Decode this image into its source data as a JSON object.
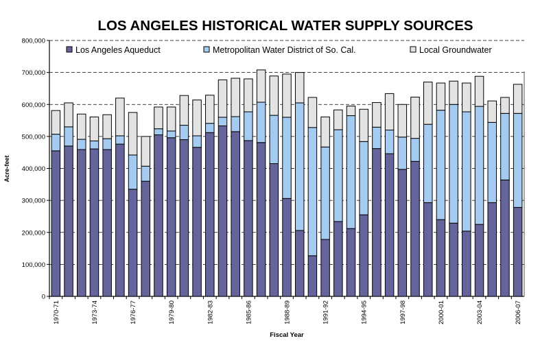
{
  "chart_data": {
    "type": "bar",
    "stacked": true,
    "title": "LOS ANGELES HISTORICAL WATER SUPPLY SOURCES",
    "xlabel": "Fiscal Year",
    "ylabel": "Acre-feet",
    "ylim": [
      0,
      800000
    ],
    "yticks": [
      "0",
      "100,000",
      "200,000",
      "300,000",
      "400,000",
      "500,000",
      "600,000",
      "700,000",
      "800,000"
    ],
    "grid": true,
    "legend": "top",
    "categories": [
      "1970-71",
      "1971-72",
      "1972-73",
      "1973-74",
      "1974-75",
      "1975-76",
      "1976-77",
      "1977-78",
      "1978-79",
      "1979-80",
      "1980-81",
      "1981-82",
      "1982-83",
      "1983-84",
      "1984-85",
      "1985-86",
      "1986-87",
      "1987-88",
      "1988-89",
      "1989-90",
      "1990-91",
      "1991-92",
      "1992-93",
      "1993-94",
      "1994-95",
      "1995-96",
      "1996-97",
      "1997-98",
      "1998-99",
      "1999-00",
      "2000-01",
      "2001-02",
      "2002-03",
      "2003-04",
      "2004-05",
      "2005-06",
      "2006-07"
    ],
    "xtick_labels": [
      "1970-71",
      "1973-74",
      "1976-77",
      "1979-80",
      "1982-83",
      "1985-86",
      "1988-89",
      "1991-92",
      "1994-95",
      "1997-98",
      "2000-01",
      "2003-04",
      "2006-07"
    ],
    "series": [
      {
        "name": "Los Angeles Aqueduct",
        "color": "#65659c",
        "values": [
          455000,
          470000,
          459000,
          461000,
          459000,
          476000,
          335000,
          360000,
          505000,
          496000,
          490000,
          466000,
          512000,
          533000,
          515000,
          487000,
          481000,
          415000,
          306000,
          206000,
          127000,
          178000,
          234000,
          212000,
          255000,
          462000,
          446000,
          397000,
          422000,
          293000,
          240000,
          229000,
          204000,
          225000,
          293000,
          364000,
          278000
        ]
      },
      {
        "name": "Metropolitan Water District of So. Cal.",
        "color": "#a6cbf0",
        "values": [
          52000,
          60000,
          32000,
          25000,
          34000,
          26000,
          107000,
          47000,
          19000,
          21000,
          45000,
          36000,
          29000,
          27000,
          47000,
          90000,
          126000,
          151000,
          254000,
          399000,
          401000,
          289000,
          287000,
          353000,
          229000,
          67000,
          74000,
          101000,
          72000,
          245000,
          342000,
          371000,
          373000,
          369000,
          251000,
          208000,
          294000
        ]
      },
      {
        "name": "Local Groundwater",
        "color": "#e3e3e3",
        "values": [
          74000,
          75000,
          79000,
          75000,
          75000,
          118000,
          133000,
          93000,
          68000,
          75000,
          93000,
          112000,
          88000,
          117000,
          120000,
          103000,
          101000,
          123000,
          135000,
          95000,
          94000,
          94000,
          62000,
          30000,
          101000,
          77000,
          114000,
          102000,
          129000,
          132000,
          85000,
          73000,
          90000,
          94000,
          67000,
          50000,
          91000
        ]
      }
    ]
  }
}
